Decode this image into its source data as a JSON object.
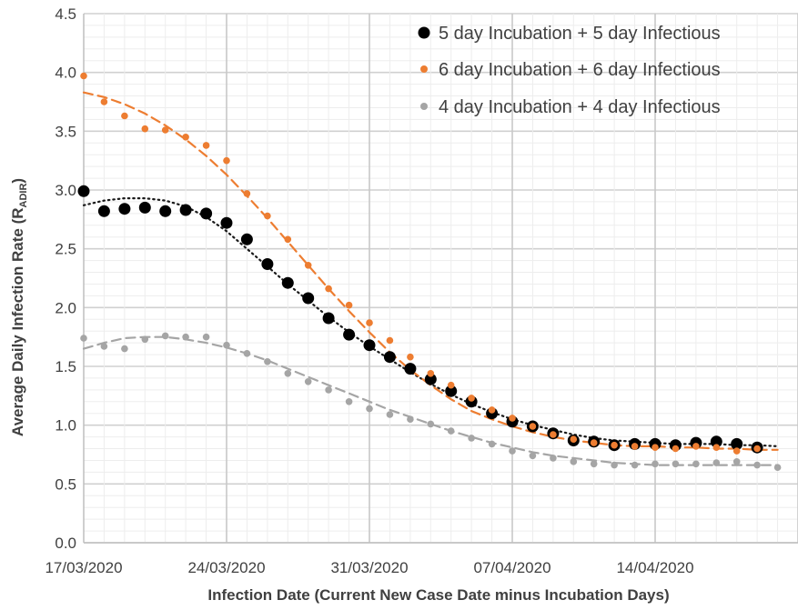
{
  "chart_data": {
    "type": "scatter",
    "x_dates": [
      "17/03/2020",
      "18/03/2020",
      "19/03/2020",
      "20/03/2020",
      "21/03/2020",
      "22/03/2020",
      "23/03/2020",
      "24/03/2020",
      "25/03/2020",
      "26/03/2020",
      "27/03/2020",
      "28/03/2020",
      "29/03/2020",
      "30/03/2020",
      "31/03/2020",
      "01/04/2020",
      "02/04/2020",
      "03/04/2020",
      "04/04/2020",
      "05/04/2020",
      "06/04/2020",
      "07/04/2020",
      "08/04/2020",
      "09/04/2020",
      "10/04/2020",
      "11/04/2020",
      "12/04/2020",
      "13/04/2020",
      "14/04/2020",
      "15/04/2020",
      "16/04/2020",
      "17/04/2020",
      "18/04/2020",
      "19/04/2020",
      "20/04/2020"
    ],
    "x_tick_labels": [
      "17/03/2020",
      "24/03/2020",
      "31/03/2020",
      "07/04/2020",
      "14/04/2020"
    ],
    "y_ticks": [
      "0.0",
      "0.5",
      "1.0",
      "1.5",
      "2.0",
      "2.5",
      "3.0",
      "3.5",
      "4.0",
      "4.5"
    ],
    "ylim": [
      0,
      4.5
    ],
    "xlabel": "Infection Date (Current New Case Date minus Incubation Days)",
    "ylabel_main": "Average Daily Infection Rate (R",
    "ylabel_sub": "ADIR",
    "ylabel_end": ")",
    "grid": true,
    "legend_position": "top-right",
    "series": [
      {
        "name": "5 day Incubation + 5 day Infectious",
        "color": "#000000",
        "marker": "large-circle",
        "trend_style": "dotted",
        "start": 0,
        "values": [
          2.99,
          2.82,
          2.84,
          2.85,
          2.82,
          2.83,
          2.8,
          2.72,
          2.58,
          2.37,
          2.21,
          2.08,
          1.91,
          1.77,
          1.68,
          1.58,
          1.48,
          1.39,
          1.29,
          1.2,
          1.1,
          1.03,
          0.99,
          0.93,
          0.87,
          0.86,
          0.83,
          0.84,
          0.84,
          0.83,
          0.85,
          0.86,
          0.84,
          0.81
        ],
        "trend": [
          2.87,
          2.91,
          2.93,
          2.93,
          2.91,
          2.86,
          2.77,
          2.65,
          2.5,
          2.35,
          2.2,
          2.06,
          1.92,
          1.79,
          1.67,
          1.56,
          1.45,
          1.35,
          1.26,
          1.18,
          1.11,
          1.05,
          1.0,
          0.96,
          0.92,
          0.89,
          0.87,
          0.86,
          0.85,
          0.84,
          0.84,
          0.84,
          0.83,
          0.83,
          0.82
        ]
      },
      {
        "name": "6 day Incubation + 6 day Infectious",
        "color": "#ED7D31",
        "marker": "small-circle",
        "trend_style": "dashed",
        "start": 0,
        "values": [
          3.97,
          3.75,
          3.63,
          3.52,
          3.51,
          3.45,
          3.38,
          3.25,
          2.97,
          2.78,
          2.58,
          2.36,
          2.16,
          2.02,
          1.87,
          1.72,
          1.58,
          1.44,
          1.34,
          1.23,
          1.13,
          1.06,
          0.99,
          0.92,
          0.88,
          0.85,
          0.83,
          0.82,
          0.81,
          0.8,
          0.82,
          0.81,
          0.78,
          0.8
        ],
        "trend": [
          3.83,
          3.79,
          3.73,
          3.65,
          3.55,
          3.43,
          3.29,
          3.13,
          2.95,
          2.76,
          2.56,
          2.36,
          2.16,
          1.97,
          1.79,
          1.62,
          1.47,
          1.34,
          1.22,
          1.12,
          1.05,
          0.99,
          0.94,
          0.9,
          0.87,
          0.85,
          0.83,
          0.82,
          0.82,
          0.81,
          0.81,
          0.8,
          0.8,
          0.79,
          0.79
        ]
      },
      {
        "name": "4 day Incubation + 4 day Infectious",
        "color": "#A5A5A5",
        "marker": "small-circle",
        "trend_style": "dashed",
        "start": 0,
        "values": [
          1.74,
          1.67,
          1.65,
          1.73,
          1.76,
          1.75,
          1.75,
          1.68,
          1.61,
          1.54,
          1.44,
          1.37,
          1.3,
          1.2,
          1.14,
          1.09,
          1.05,
          1.01,
          0.95,
          0.89,
          0.84,
          0.78,
          0.74,
          0.72,
          0.69,
          0.67,
          0.66,
          0.66,
          0.67,
          0.67,
          0.67,
          0.68,
          0.69,
          0.66,
          0.64
        ],
        "trend": [
          1.65,
          1.7,
          1.74,
          1.75,
          1.75,
          1.73,
          1.7,
          1.66,
          1.61,
          1.55,
          1.48,
          1.41,
          1.34,
          1.27,
          1.2,
          1.13,
          1.07,
          1.01,
          0.95,
          0.9,
          0.85,
          0.81,
          0.77,
          0.74,
          0.72,
          0.7,
          0.68,
          0.67,
          0.66,
          0.66,
          0.66,
          0.66,
          0.66,
          0.66,
          0.66
        ]
      }
    ]
  }
}
